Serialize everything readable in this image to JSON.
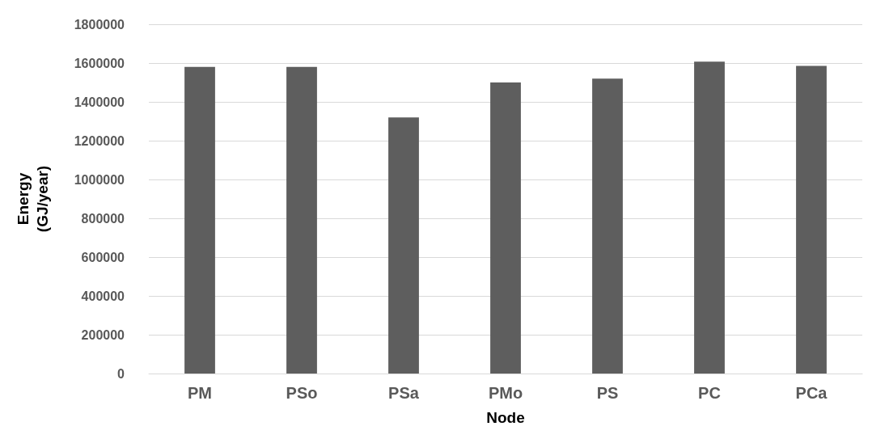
{
  "chart_data": {
    "type": "bar",
    "xlabel": "Node",
    "ylabel": "Energy\n(GJ/year)",
    "categories": [
      "PM",
      "PSo",
      "PSa",
      "PMo",
      "PS",
      "PC",
      "PCa"
    ],
    "values": [
      1580000,
      1580000,
      1320000,
      1500000,
      1520000,
      1607000,
      1585000
    ],
    "color": "#5e5e5e",
    "ylim": [
      0,
      1800000
    ],
    "yticks": [
      0,
      200000,
      400000,
      600000,
      800000,
      1000000,
      1200000,
      1400000,
      1600000,
      1800000
    ],
    "grid": "y"
  }
}
